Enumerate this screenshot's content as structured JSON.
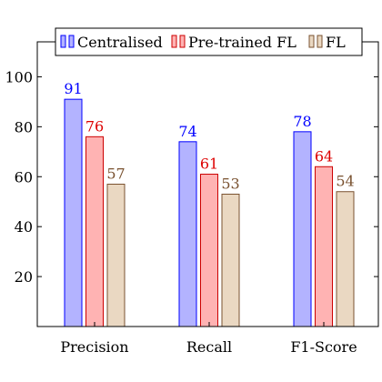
{
  "chart_data": {
    "type": "bar",
    "title": "",
    "xlabel": "",
    "ylabel": "",
    "categories": [
      "Precision",
      "Recall",
      "F1-Score"
    ],
    "series": [
      {
        "name": "Centralised",
        "values": [
          91,
          74,
          78
        ],
        "fill": "#b3b3ff",
        "stroke": "#0000ff",
        "label_color": "#0000ff"
      },
      {
        "name": "Pre-trained FL",
        "values": [
          76,
          61,
          64
        ],
        "fill": "#ffb3b3",
        "stroke": "#cc0000",
        "label_color": "#dd0000"
      },
      {
        "name": "FL",
        "values": [
          57,
          53,
          54
        ],
        "fill": "#ead8c2",
        "stroke": "#7a5230",
        "label_color": "#7a5230"
      }
    ],
    "yticks": [
      20,
      40,
      60,
      80,
      100
    ],
    "ylim": [
      0,
      114
    ],
    "grid": false,
    "legend_position": "top-center",
    "data_labels": true
  }
}
